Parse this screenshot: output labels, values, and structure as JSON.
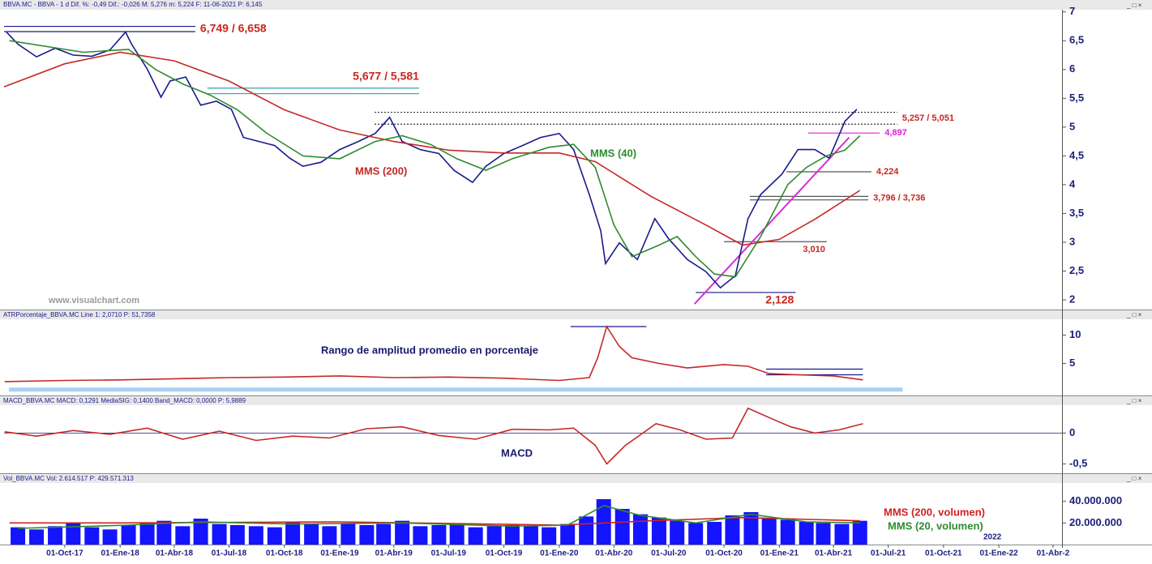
{
  "chart_data": [
    {
      "type": "line",
      "header": "BBVA.MC - BBVA - 1 d Dif. %: -0,49 Dif.: -0,026 M: 5,276 m: 5,224 F: 11-06-2021 P: 6,145",
      "watermark": "www.visualchart.com",
      "xlim": [
        "2017-06-22",
        "2022-04-16"
      ],
      "ylim": [
        1.86,
        7.01
      ],
      "yticks": [
        2,
        {
          "value": 2.5,
          "label": "2,5"
        },
        3,
        {
          "value": 3.5,
          "label": "3,5"
        },
        4,
        {
          "value": 4.5,
          "label": "4,5"
        },
        5,
        {
          "value": 5.5,
          "label": "5,5"
        },
        6,
        {
          "value": 6.5,
          "label": "6,5"
        },
        7
      ],
      "series": [
        {
          "color": "#1a1a8c",
          "x": [
            "2017-06-26",
            "2017-07-15",
            "2017-08-15",
            "2017-09-15",
            "2017-10-15",
            "2017-11-15",
            "2017-12-15",
            "2018-01-10",
            "2018-01-20",
            "2018-02-15",
            "2018-03-10",
            "2018-03-25",
            "2018-04-20",
            "2018-05-15",
            "2018-06-10",
            "2018-07-05",
            "2018-07-25",
            "2018-08-20",
            "2018-09-15",
            "2018-10-10",
            "2018-11-01",
            "2018-12-01",
            "2019-01-01",
            "2019-02-01",
            "2019-03-01",
            "2019-03-25",
            "2019-04-15",
            "2019-05-15",
            "2019-06-15",
            "2019-07-10",
            "2019-08-10",
            "2019-09-01",
            "2019-10-01",
            "2019-11-01",
            "2019-12-01",
            "2020-01-01",
            "2020-01-25",
            "2020-02-20",
            "2020-03-10",
            "2020-03-18",
            "2020-04-10",
            "2020-05-10",
            "2020-06-08",
            "2020-07-01",
            "2020-08-01",
            "2020-09-01",
            "2020-09-25",
            "2020-10-20",
            "2020-11-10",
            "2020-12-01",
            "2021-01-05",
            "2021-02-01",
            "2021-03-01",
            "2021-03-25",
            "2021-04-20",
            "2021-05-10"
          ],
          "values": [
            6.65,
            6.44,
            6.22,
            6.37,
            6.25,
            6.23,
            6.34,
            6.65,
            6.44,
            6.01,
            5.52,
            5.8,
            5.87,
            5.38,
            5.45,
            5.31,
            4.82,
            4.75,
            4.68,
            4.46,
            4.32,
            4.39,
            4.61,
            4.75,
            4.89,
            5.17,
            4.75,
            4.61,
            4.54,
            4.25,
            4.04,
            4.32,
            4.54,
            4.68,
            4.82,
            4.89,
            4.61,
            3.83,
            3.2,
            2.63,
            2.99,
            2.7,
            3.41,
            3.06,
            2.7,
            2.49,
            2.21,
            2.42,
            3.41,
            3.83,
            4.18,
            4.61,
            4.61,
            4.46,
            5.1,
            5.31
          ]
        },
        {
          "name": "MMS (200)",
          "color": "#c62828",
          "x": [
            "2017-06-22",
            "2017-10-01",
            "2018-01-01",
            "2018-04-01",
            "2018-07-01",
            "2018-10-01",
            "2019-01-01",
            "2019-04-01",
            "2019-07-01",
            "2019-10-01",
            "2020-01-01",
            "2020-03-01",
            "2020-06-01",
            "2020-09-01",
            "2020-11-01",
            "2021-01-01",
            "2021-03-01",
            "2021-05-15"
          ],
          "values": [
            5.7,
            6.1,
            6.3,
            6.15,
            5.8,
            5.3,
            4.95,
            4.75,
            4.6,
            4.55,
            4.55,
            4.4,
            3.8,
            3.3,
            2.95,
            3.05,
            3.4,
            3.9
          ]
        },
        {
          "name": "MMS (40)",
          "color": "#2e8b2e",
          "x": [
            "2017-07-01",
            "2017-11-01",
            "2018-01-15",
            "2018-03-01",
            "2018-04-15",
            "2018-06-01",
            "2018-07-15",
            "2018-09-01",
            "2018-11-01",
            "2019-01-01",
            "2019-03-01",
            "2019-04-15",
            "2019-06-01",
            "2019-07-15",
            "2019-09-01",
            "2019-10-15",
            "2019-12-15",
            "2020-01-25",
            "2020-03-01",
            "2020-04-01",
            "2020-05-01",
            "2020-06-15",
            "2020-07-15",
            "2020-08-15",
            "2020-09-15",
            "2020-10-20",
            "2020-12-01",
            "2021-01-15",
            "2021-02-15",
            "2021-03-20",
            "2021-04-20",
            "2021-05-15"
          ],
          "values": [
            6.5,
            6.3,
            6.35,
            6.0,
            5.75,
            5.55,
            5.3,
            4.9,
            4.5,
            4.45,
            4.75,
            4.85,
            4.7,
            4.45,
            4.25,
            4.45,
            4.65,
            4.7,
            4.3,
            3.3,
            2.75,
            2.95,
            3.1,
            2.75,
            2.45,
            2.4,
            3.1,
            4.0,
            4.3,
            4.5,
            4.6,
            4.85
          ]
        }
      ],
      "levels": [
        {
          "label": "6,749 / 6,658",
          "values": [
            6.749,
            6.658
          ],
          "from": "2017-06-22",
          "to": "2018-05-06",
          "color": "#1a1a8c",
          "label_color": "#c8261e"
        },
        {
          "label": "5,677 / 5,581",
          "values": [
            5.677,
            5.581
          ],
          "from": "2018-05-26",
          "to": "2019-05-13",
          "color": "#3aa5a5",
          "label_color": "#c8261e"
        },
        {
          "label": "5,257 / 5,051",
          "values": [
            5.257,
            5.051
          ],
          "from": "2019-02-28",
          "to": "2021-07-16",
          "color": "#333333",
          "label_color": "#c8261e"
        },
        {
          "label": "4,897",
          "values": [
            4.897
          ],
          "from": "2021-02-18",
          "to": "2021-06-17",
          "color": "#e020e0",
          "label_color": "#e020e0"
        },
        {
          "label": "4,224",
          "values": [
            4.224
          ],
          "from": "2021-01-13",
          "to": "2021-06-03",
          "color": "#555555",
          "label_color": "#c8261e"
        },
        {
          "label": "3,796 / 3,736",
          "values": [
            3.796,
            3.736
          ],
          "from": "2020-11-13",
          "to": "2021-05-29",
          "color": "#555555",
          "label_color": "#c8261e"
        },
        {
          "label": "3,010",
          "values": [
            3.01
          ],
          "from": "2020-10-01",
          "to": "2021-03-21",
          "color": "#555555",
          "label_color": "#c8261e"
        },
        {
          "label": "2,128",
          "values": [
            2.128
          ],
          "from": "2020-08-15",
          "to": "2021-01-28",
          "color": "#1a1a8c",
          "label_color": "#c8261e"
        }
      ],
      "trendline": {
        "from": [
          "2020-08-13",
          1.93
        ],
        "to": [
          "2021-04-27",
          4.82
        ],
        "color": "#d62fd6"
      }
    },
    {
      "type": "line",
      "header": "ATRPorcentaje_BBVA.MC Line 1: 2,0710 P: 51,7358",
      "caption": "Rango de amplitud promedio en porcentaje",
      "xlim": [
        "2017-06-22",
        "2022-04-16"
      ],
      "ylim": [
        -0.5,
        12.5
      ],
      "yticks": [
        5,
        10
      ],
      "series": [
        {
          "color": "#c62828",
          "x": [
            "2017-06-23",
            "2017-10-01",
            "2018-01-01",
            "2018-04-01",
            "2018-07-01",
            "2018-10-01",
            "2019-01-01",
            "2019-04-01",
            "2019-07-01",
            "2019-10-01",
            "2020-01-01",
            "2020-02-20",
            "2020-03-05",
            "2020-03-20",
            "2020-04-10",
            "2020-05-01",
            "2020-06-15",
            "2020-08-01",
            "2020-10-01",
            "2020-11-10",
            "2020-12-15",
            "2021-02-01",
            "2021-04-01",
            "2021-05-20"
          ],
          "values": [
            1.8,
            2.0,
            2.1,
            2.3,
            2.5,
            2.6,
            2.8,
            2.5,
            2.6,
            2.4,
            2.0,
            2.5,
            6,
            11.5,
            8,
            6,
            5,
            4.2,
            4.8,
            4.5,
            3.2,
            3.0,
            2.8,
            2.1
          ]
        }
      ],
      "levels": [
        {
          "values": [
            11.5
          ],
          "from": "2020-01-20",
          "to": "2020-05-25",
          "color": "#1a1a8c"
        },
        {
          "values": [
            4,
            3
          ],
          "from": "2020-12-10",
          "to": "2021-05-20",
          "color": "#1a1a8c"
        },
        {
          "values": [
            0.4
          ],
          "from": "2017-06-30",
          "to": "2021-07-25",
          "color": "#a8d0f0"
        }
      ]
    },
    {
      "type": "line",
      "header": "MACD_BBVA.MC MACD: 0,1291 MediaSIG: 0,1400 Band_MACD: 0,0000 P: 5,9889",
      "caption": "MACD",
      "xlim": [
        "2017-06-22",
        "2022-04-16"
      ],
      "ylim": [
        -0.65,
        0.45
      ],
      "yticks": [
        {
          "value": -0.5,
          "label": "-0,5"
        },
        0
      ],
      "series": [
        {
          "color": "#c62828",
          "x": [
            "2017-06-23",
            "2017-08-15",
            "2017-10-15",
            "2017-12-15",
            "2018-02-15",
            "2018-04-15",
            "2018-06-15",
            "2018-08-15",
            "2018-10-15",
            "2018-12-15",
            "2019-02-15",
            "2019-04-15",
            "2019-06-15",
            "2019-08-15",
            "2019-10-15",
            "2019-12-15",
            "2020-01-25",
            "2020-03-01",
            "2020-03-20",
            "2020-04-20",
            "2020-06-10",
            "2020-07-20",
            "2020-09-01",
            "2020-10-15",
            "2020-11-10",
            "2020-12-15",
            "2021-01-20",
            "2021-03-01",
            "2021-04-10",
            "2021-05-20"
          ],
          "values": [
            0.02,
            -0.05,
            0.04,
            -0.02,
            0.08,
            -0.1,
            0.03,
            -0.12,
            -0.05,
            -0.08,
            0.07,
            0.1,
            -0.04,
            -0.1,
            0.06,
            0.05,
            0.08,
            -0.2,
            -0.5,
            -0.2,
            0.15,
            0.05,
            -0.1,
            -0.08,
            0.4,
            0.25,
            0.1,
            0.0,
            0.05,
            0.15
          ]
        }
      ]
    },
    {
      "type": "bar",
      "header": "Vol_BBVA.MC Vol: 2.614.517 P: 429.571.313",
      "year_marker": {
        "x": "2022-01-01",
        "label": "2022"
      },
      "xlim": [
        "2017-06-22",
        "2022-04-16"
      ],
      "ylim": [
        0,
        57000000
      ],
      "yticks": [
        {
          "value": 20000000,
          "label": "20.000.000"
        },
        {
          "value": 40000000,
          "label": "40.000.000"
        }
      ],
      "xticks": [
        {
          "value": "2017-10-01",
          "label": "01-Oct-17"
        },
        {
          "value": "2018-01-01",
          "label": "01-Ene-18"
        },
        {
          "value": "2018-04-01",
          "label": "01-Abr-18"
        },
        {
          "value": "2018-07-01",
          "label": "01-Jul-18"
        },
        {
          "value": "2018-10-01",
          "label": "01-Oct-18"
        },
        {
          "value": "2019-01-01",
          "label": "01-Ene-19"
        },
        {
          "value": "2019-04-01",
          "label": "01-Abr-19"
        },
        {
          "value": "2019-07-01",
          "label": "01-Jul-19"
        },
        {
          "value": "2019-10-01",
          "label": "01-Oct-19"
        },
        {
          "value": "2020-01-01",
          "label": "01-Ene-20"
        },
        {
          "value": "2020-04-01",
          "label": "01-Abr-20"
        },
        {
          "value": "2020-07-01",
          "label": "01-Jul-20"
        },
        {
          "value": "2020-10-01",
          "label": "01-Oct-20"
        },
        {
          "value": "2021-01-01",
          "label": "01-Ene-21"
        },
        {
          "value": "2021-04-01",
          "label": "01-Abr-21"
        },
        {
          "value": "2021-07-01",
          "label": "01-Jul-21"
        },
        {
          "value": "2021-10-01",
          "label": "01-Oct-21"
        },
        {
          "value": "2022-01-01",
          "label": "01-Ene-22"
        },
        {
          "value": "2022-04-01",
          "label": "01-Abr-2"
        }
      ],
      "series": [
        {
          "color": "#1414ff",
          "x": [
            "2017-07-15",
            "2017-08-15",
            "2017-09-15",
            "2017-10-15",
            "2017-11-15",
            "2017-12-15",
            "2018-01-15",
            "2018-02-15",
            "2018-03-15",
            "2018-04-15",
            "2018-05-15",
            "2018-06-15",
            "2018-07-15",
            "2018-08-15",
            "2018-09-15",
            "2018-10-15",
            "2018-11-15",
            "2018-12-15",
            "2019-01-15",
            "2019-02-15",
            "2019-03-15",
            "2019-04-15",
            "2019-05-15",
            "2019-06-15",
            "2019-07-15",
            "2019-08-15",
            "2019-09-15",
            "2019-10-15",
            "2019-11-15",
            "2019-12-15",
            "2020-01-15",
            "2020-02-15",
            "2020-03-15",
            "2020-04-15",
            "2020-05-15",
            "2020-06-15",
            "2020-07-15",
            "2020-08-15",
            "2020-09-15",
            "2020-10-15",
            "2020-11-15",
            "2020-12-15",
            "2021-01-15",
            "2021-02-15",
            "2021-03-15",
            "2021-04-15",
            "2021-05-15"
          ],
          "values": [
            16000000,
            14000000,
            17000000,
            20000000,
            16000000,
            14000000,
            18000000,
            20000000,
            22000000,
            17000000,
            24000000,
            19000000,
            18000000,
            17000000,
            16000000,
            21000000,
            19000000,
            17000000,
            20000000,
            18000000,
            19000000,
            22000000,
            17000000,
            18000000,
            19000000,
            16000000,
            17000000,
            18000000,
            17000000,
            16000000,
            19000000,
            26000000,
            42000000,
            33000000,
            28000000,
            25000000,
            22000000,
            20000000,
            21000000,
            27000000,
            30000000,
            24000000,
            23000000,
            21000000,
            20000000,
            19000000,
            22000000
          ]
        },
        {
          "type": "line",
          "name": "MMS (200, volumen)",
          "color": "#d32020",
          "x": [
            "2017-07-01",
            "2018-01-01",
            "2019-01-01",
            "2020-01-01",
            "2020-06-01",
            "2020-11-01",
            "2021-05-15"
          ],
          "values": [
            20000000,
            20000000,
            21000000,
            18000000,
            22000000,
            25000000,
            22000000
          ]
        },
        {
          "type": "line",
          "name": "MMS (20, volumen)",
          "color": "#2e8b2e",
          "x": [
            "2017-07-15",
            "2018-01-15",
            "2018-05-15",
            "2018-10-15",
            "2019-04-15",
            "2019-10-15",
            "2020-01-15",
            "2020-03-15",
            "2020-05-15",
            "2020-08-15",
            "2020-11-15",
            "2021-02-15",
            "2021-05-15"
          ],
          "values": [
            15000000,
            18000000,
            21000000,
            19000000,
            20000000,
            17000000,
            18000000,
            36000000,
            27000000,
            20000000,
            28000000,
            21000000,
            20000000
          ]
        }
      ]
    }
  ]
}
